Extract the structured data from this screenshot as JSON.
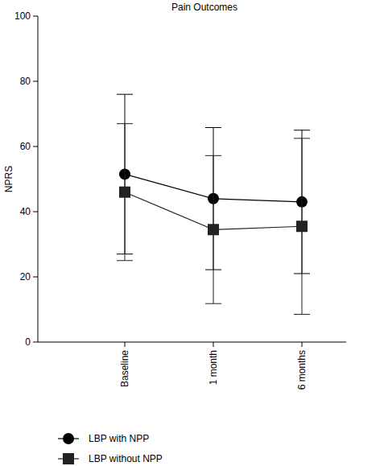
{
  "chart_data": {
    "type": "line",
    "title": "Pain Outcomes",
    "y_label": "NPRS",
    "categories": [
      "Baseline",
      "1 month",
      "6 months"
    ],
    "series": [
      {
        "name": "LBP with NPP",
        "color": "#000000",
        "marker": "circle",
        "line_style": "solid",
        "values": [
          51.5,
          44,
          43
        ],
        "errors": [
          24.5,
          21.8,
          22
        ]
      },
      {
        "name": "LBP without NPP",
        "color": "#222222",
        "marker": "square",
        "line_style": "solid",
        "values": [
          46,
          34.5,
          35.5
        ],
        "errors": [
          21,
          22.7,
          27
        ]
      }
    ],
    "ylim": [
      0,
      100
    ],
    "yticks": [
      0,
      20,
      40,
      60,
      80,
      100
    ],
    "grid": false,
    "legend": "bottom"
  }
}
